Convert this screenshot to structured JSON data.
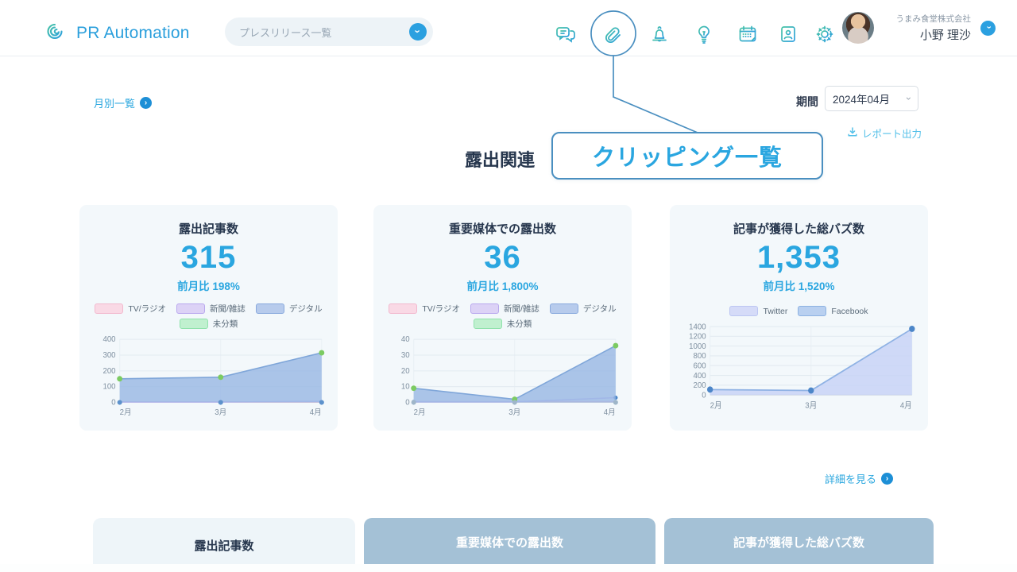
{
  "header": {
    "logo_text": "PR Automation",
    "nav_dropdown": "プレスリリース一覧",
    "icons": [
      "chat",
      "paperclip",
      "bell",
      "lightbulb",
      "calendar",
      "contact-card",
      "settings"
    ],
    "company": "うまみ食堂株式会社",
    "user_name": "小野 理沙"
  },
  "annotation": {
    "callout_label": "クリッピング一覧"
  },
  "toolbar": {
    "monthly_list": "月別一覧",
    "period_label": "期間",
    "period_value": "2024年04月",
    "report_export": "レポート出力"
  },
  "section": {
    "title": "露出関連",
    "details_link": "詳細を見る"
  },
  "cards": [
    {
      "title": "露出記事数",
      "value": "315",
      "mom": "前月比 198%"
    },
    {
      "title": "重要媒体での露出数",
      "value": "36",
      "mom": "前月比 1,800%"
    },
    {
      "title": "記事が獲得した総バズ数",
      "value": "1,353",
      "mom": "前月比 1,520%"
    }
  ],
  "tabs": [
    {
      "label": "露出記事数",
      "active": true
    },
    {
      "label": "重要媒体での露出数",
      "active": false
    },
    {
      "label": "記事が獲得した総バズ数",
      "active": false
    }
  ],
  "colors": {
    "accent_blue": "#2aa6e0",
    "navy_text": "#27374e",
    "callout_border": "#4a8fc0",
    "card_bg": "#f3f8fb",
    "tab_inactive": "#a4c1d6",
    "tab_active": "#eef5f9"
  },
  "chart_data": [
    {
      "type": "area",
      "title": "露出記事数",
      "x": [
        "2月",
        "3月",
        "4月"
      ],
      "ylim": [
        0,
        400
      ],
      "yticks": [
        0,
        100,
        200,
        300,
        400
      ],
      "series": [
        {
          "name": "TV/ラジオ",
          "legend": {
            "fill": "#f9d9e5",
            "border": "#f2b9ce"
          },
          "stroke": "#f4bcd2",
          "values": [
            3,
            3,
            3
          ]
        },
        {
          "name": "新聞/雑誌",
          "legend": {
            "fill": "#dcd2f6",
            "border": "#b9a8ee"
          },
          "stroke": "#c9bbf2",
          "values": [
            2,
            2,
            7
          ]
        },
        {
          "name": "デジタル",
          "legend": {
            "fill": "#b7cbec",
            "border": "#88a9dd"
          },
          "stroke": "#7fa6d9",
          "fill": "rgba(151,183,228,0.8)",
          "values": [
            150,
            160,
            315
          ],
          "marker": "#7ccb62",
          "marker_r": 3.4
        },
        {
          "name": "未分類",
          "legend": {
            "fill": "#c0f0cf",
            "border": "#90e2ac"
          },
          "values": null
        },
        {
          "name": "baseline-dots",
          "values": [
            0,
            0,
            0
          ],
          "marker": "#5d92cc",
          "marker_r": 3
        }
      ]
    },
    {
      "type": "area",
      "title": "重要媒体での露出数",
      "x": [
        "2月",
        "3月",
        "4月"
      ],
      "ylim": [
        0,
        40
      ],
      "yticks": [
        0,
        10,
        20,
        30,
        40
      ],
      "series": [
        {
          "name": "TV/ラジオ",
          "legend": {
            "fill": "#f9d9e5",
            "border": "#f2b9ce"
          },
          "stroke": "#f4bcd2",
          "values": [
            0.5,
            0.5,
            0.5
          ]
        },
        {
          "name": "新聞/雑誌",
          "legend": {
            "fill": "#dcd2f6",
            "border": "#b9a8ee"
          },
          "stroke": "#c9bbf2",
          "values": [
            0.3,
            0.3,
            3
          ],
          "marker": "#4c86c8",
          "marker_r": 2.6
        },
        {
          "name": "デジタル",
          "legend": {
            "fill": "#b7cbec",
            "border": "#88a9dd"
          },
          "stroke": "#7fa6d9",
          "fill": "rgba(151,183,228,0.8)",
          "values": [
            9,
            2,
            36
          ],
          "marker": "#7ccb62",
          "marker_r": 3.4
        },
        {
          "name": "未分類",
          "legend": {
            "fill": "#c0f0cf",
            "border": "#90e2ac"
          },
          "values": null
        },
        {
          "name": "baseline-dots",
          "values": [
            0,
            0,
            0
          ],
          "marker": "#9fb6c9",
          "marker_r": 3
        }
      ]
    },
    {
      "type": "area",
      "title": "記事が獲得した総バズ数",
      "x": [
        "2月",
        "3月",
        "4月"
      ],
      "ylim": [
        0,
        1400
      ],
      "yticks": [
        0,
        200,
        400,
        600,
        800,
        1000,
        1200,
        1400
      ],
      "series": [
        {
          "name": "Twitter",
          "legend": {
            "fill": "#d5dbf8",
            "border": "#bcc6f2"
          },
          "values": null
        },
        {
          "name": "Facebook",
          "legend": {
            "fill": "#b9d0f0",
            "border": "#8cb2e2"
          },
          "stroke": "#8fb2e4",
          "fill": "rgba(200,211,246,0.85)",
          "values": [
            110,
            90,
            1353
          ],
          "marker": "#4c86c8",
          "marker_r": 3.6
        }
      ]
    }
  ]
}
